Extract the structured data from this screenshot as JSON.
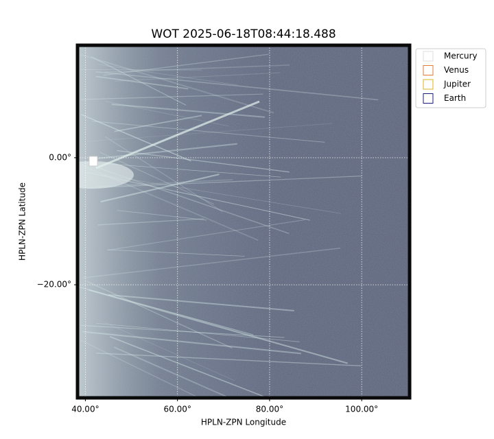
{
  "chart_data": {
    "type": "image",
    "title": "WOT 2025-06-18T08:44:18.488",
    "x_label": "HPLN-ZPN Longitude",
    "y_label": "HPLN-ZPN Latitude",
    "xlim": [
      38.3,
      110.4
    ],
    "ylim": [
      -37.8,
      17.7
    ],
    "xticks": [
      {
        "value": 40,
        "label": "40.00°"
      },
      {
        "value": 60,
        "label": "60.00°"
      },
      {
        "value": 80,
        "label": "80.00°"
      },
      {
        "value": 100,
        "label": "100.00°"
      }
    ],
    "yticks": [
      {
        "value": 0,
        "label": "0.00°"
      },
      {
        "value": -20,
        "label": "−20.00°"
      }
    ],
    "grid": true,
    "legend_position": "upper right",
    "legend": [
      {
        "name": "Mercury",
        "color": "#dddddd"
      },
      {
        "name": "Venus",
        "color": "#e07b39"
      },
      {
        "name": "Jupiter",
        "color": "#e0b020"
      },
      {
        "name": "Earth",
        "color": "#1a1a7a"
      }
    ]
  }
}
